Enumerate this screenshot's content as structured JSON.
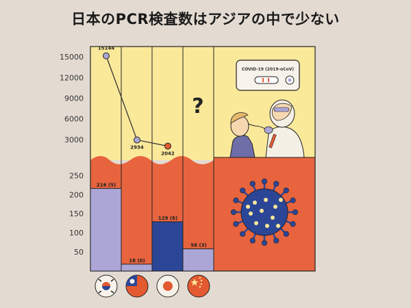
{
  "title": "日本のPCR検査数はアジアの中で少ない",
  "colors": {
    "background": "#e3dbd2",
    "top_panel": "#fbe99a",
    "bottom_panel": "#e7643e",
    "lavender": "#aba6d6",
    "navy": "#2c4697",
    "orange_dot": "#e35a30",
    "line": "#333333"
  },
  "illustration": {
    "question_mark": "?",
    "test_kit_label": "COVID-19 (2019-nCoV)",
    "icons": [
      "test-kit-icon",
      "swab-test-illustration-icon",
      "coronavirus-icon"
    ]
  },
  "flags": [
    "south-korea-flag-icon",
    "taiwan-flag-icon",
    "japan-flag-icon",
    "china-flag-icon"
  ],
  "chart_data": [
    {
      "type": "line",
      "title": "",
      "xlabel": "",
      "ylabel": "",
      "categories": [
        "South Korea",
        "Taiwan",
        "Japan",
        "China"
      ],
      "x": [
        0,
        1,
        2
      ],
      "values": [
        15144,
        2934,
        2042
      ],
      "data_labels": [
        "15144",
        "2934",
        "2042"
      ],
      "point_colors": [
        "#aba6d6",
        "#aba6d6",
        "#e35a30"
      ],
      "ylim": [
        0,
        16500
      ],
      "yticks": [
        3000,
        6000,
        9000,
        12000,
        15000
      ],
      "ytick_labels": [
        "3000",
        "6000",
        "9000",
        "12000",
        "15000"
      ],
      "grid": false,
      "fourth_value_shown": "?"
    },
    {
      "type": "bar",
      "title": "",
      "xlabel": "",
      "ylabel": "",
      "categories": [
        "South Korea",
        "Taiwan",
        "Japan",
        "China"
      ],
      "values": [
        216,
        18,
        129,
        58
      ],
      "data_labels": [
        "216 (5)",
        "18 (0)",
        "129 (6)",
        "58 (3)"
      ],
      "bar_colors": [
        "#aba6d6",
        "#aba6d6",
        "#2c4697",
        "#aba6d6"
      ],
      "ylim": [
        0,
        290
      ],
      "yticks": [
        50,
        100,
        150,
        200,
        250
      ],
      "ytick_labels": [
        "50",
        "100",
        "150",
        "200",
        "250"
      ],
      "grid": false
    }
  ]
}
